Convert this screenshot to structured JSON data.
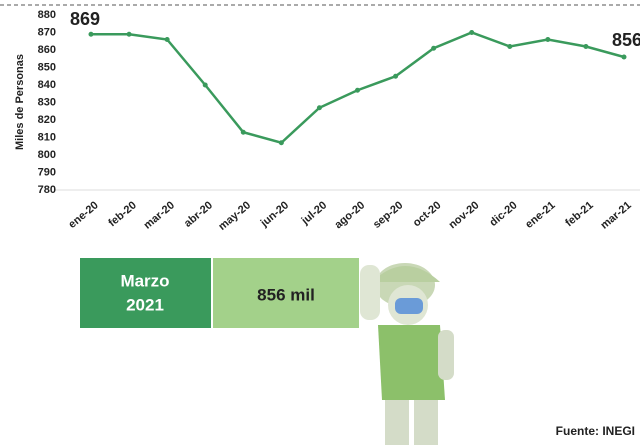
{
  "chart_data": {
    "type": "line",
    "y_label": "Miles de Personas",
    "categories": [
      "ene-20",
      "feb-20",
      "mar-20",
      "abr-20",
      "may-20",
      "jun-20",
      "jul-20",
      "ago-20",
      "sep-20",
      "oct-20",
      "nov-20",
      "dic-20",
      "ene-21",
      "feb-21",
      "mar-21"
    ],
    "values": [
      869,
      869,
      866,
      840,
      813,
      807,
      827,
      837,
      845,
      861,
      870,
      862,
      866,
      862,
      856
    ],
    "color": "#3a9a5c",
    "ylim": [
      780,
      880
    ],
    "yticks": [
      780,
      790,
      800,
      810,
      820,
      830,
      840,
      850,
      860,
      870,
      880
    ]
  },
  "panel": {
    "month": "Marzo",
    "year": "2021",
    "value": "856 mil"
  },
  "source": "Fuente: INEGI"
}
